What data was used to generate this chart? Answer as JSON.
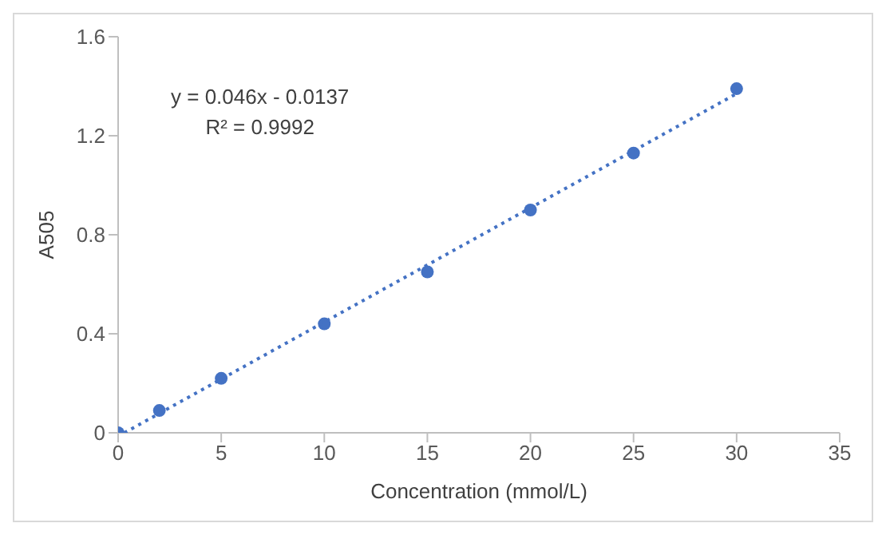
{
  "chart_data": {
    "type": "scatter",
    "xlabel": "Concentration (mmol/L)",
    "ylabel": "A505",
    "annotations": [
      "y = 0.046x - 0.0137",
      "R² = 0.9992"
    ],
    "series": [
      {
        "color": "#4472c4",
        "x": [
          0,
          2,
          5,
          10,
          15,
          20,
          25,
          30
        ],
        "values": [
          0,
          0.09,
          0.22,
          0.44,
          0.65,
          0.9,
          1.13,
          1.39
        ],
        "marker": "circle"
      },
      {
        "type": "line",
        "color": "#4472c4",
        "x": [
          0.3,
          30
        ],
        "values": [
          0,
          1.37
        ],
        "line_style": "dotted",
        "marker": "none"
      }
    ],
    "xlim": [
      0,
      35
    ],
    "xticks": [
      0,
      5,
      10,
      15,
      20,
      25,
      30,
      35
    ],
    "ylim": [
      0,
      1.6
    ],
    "yticks": [
      0,
      0.4,
      0.8,
      1.2,
      1.6
    ]
  }
}
